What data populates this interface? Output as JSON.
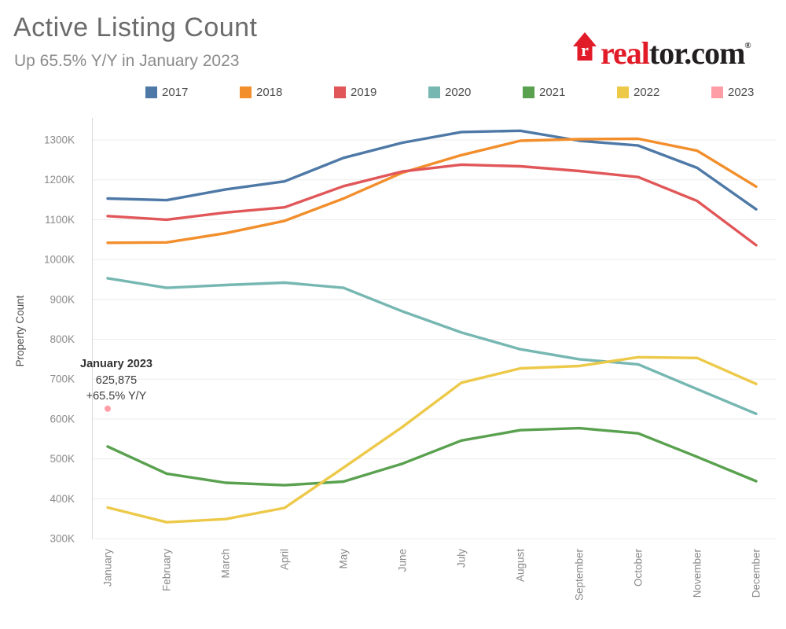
{
  "header": {
    "title": "Active Listing Count",
    "subtitle": "Up 65.5% Y/Y in January 2023"
  },
  "logo": {
    "red_text": "real",
    "dark_text": "tor.com",
    "registered_mark": "®",
    "house_letter": "r",
    "brand_red": "#e11b28",
    "brand_dark": "#231f20"
  },
  "annotation": {
    "title": "January 2023",
    "value": "625,875",
    "delta": "+65.5% Y/Y"
  },
  "chart_data": {
    "type": "line",
    "title": "Active Listing Count",
    "xlabel": "",
    "ylabel": "Property Count",
    "unit": "thousands of properties (K)",
    "grid": "horizontal",
    "legend_position": "top",
    "ylim": [
      300,
      1300
    ],
    "y_ticks": [
      300,
      400,
      500,
      600,
      700,
      800,
      900,
      1000,
      1100,
      1200,
      1300
    ],
    "y_tick_suffix": "K",
    "x_categories": [
      "January",
      "February",
      "March",
      "April",
      "May",
      "June",
      "July",
      "August",
      "September",
      "October",
      "November",
      "December"
    ],
    "series": [
      {
        "name": "2017",
        "color": "#4e79a7",
        "values": [
          1153,
          1149,
          1176,
          1196,
          1255,
          1293,
          1320,
          1323,
          1298,
          1286,
          1230,
          1126
        ]
      },
      {
        "name": "2018",
        "color": "#f28e2b",
        "values": [
          1042,
          1043,
          1066,
          1097,
          1153,
          1218,
          1262,
          1298,
          1302,
          1303,
          1273,
          1183
        ]
      },
      {
        "name": "2019",
        "color": "#e15759",
        "values": [
          1109,
          1100,
          1118,
          1131,
          1184,
          1221,
          1238,
          1234,
          1222,
          1207,
          1147,
          1036
        ]
      },
      {
        "name": "2020",
        "color": "#76b7b2",
        "values": [
          953,
          929,
          936,
          942,
          929,
          870,
          817,
          775,
          750,
          737,
          675,
          613
        ]
      },
      {
        "name": "2021",
        "color": "#59a14f",
        "values": [
          531,
          463,
          440,
          434,
          443,
          488,
          546,
          572,
          577,
          564,
          505,
          444
        ]
      },
      {
        "name": "2022",
        "color": "#edc949",
        "values": [
          378,
          341,
          349,
          377,
          478,
          580,
          691,
          727,
          733,
          755,
          753,
          688
        ]
      },
      {
        "name": "2023",
        "color": "#ff9da7",
        "values": [
          625.875,
          null,
          null,
          null,
          null,
          null,
          null,
          null,
          null,
          null,
          null,
          null
        ],
        "note": "single point shown as dot, annotated"
      }
    ]
  }
}
